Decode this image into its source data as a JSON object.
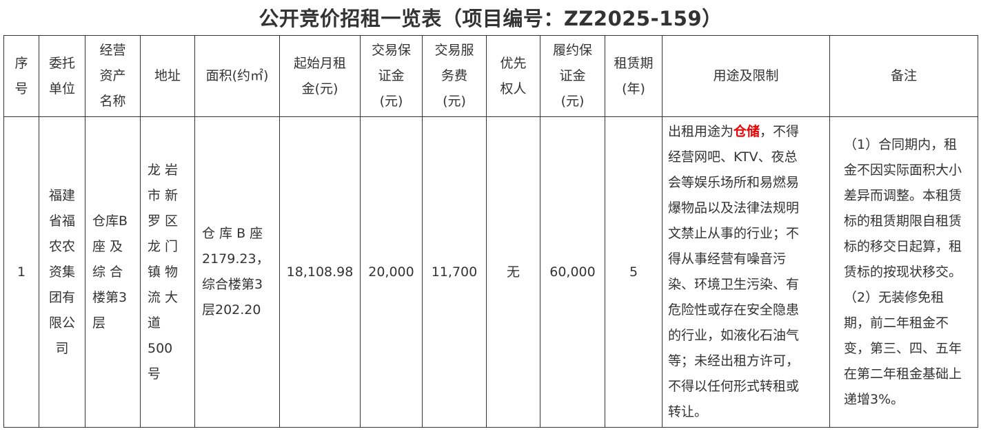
{
  "title": "公开竞价招租一览表（项目编号：ZZ2025-159）",
  "headers": [
    "序\n号",
    "委托\n单位",
    "经营\n资产\n名称",
    "地址",
    "面积(约㎡)",
    "起始月租\n金(元)",
    "交易保\n证金\n(元)",
    "交易服\n务费\n(元)",
    "优先\n权人",
    "履约保\n证金\n(元)",
    "租赁期\n(年)",
    "用途及限制",
    "备注"
  ],
  "row": {
    "index": "1",
    "entrusting_unit": "福建\n省福\n农农\n资集\n团有\n限公\n司",
    "asset_name": "仓库B\n座 及\n综 合\n楼第3\n层",
    "address": "龙 岩\n市 新\n罗 区\n龙 门\n镇 物\n流 大\n道\n500\n号",
    "area": "仓 库 B 座\n2179.23，\n综合楼第3\n层202.20",
    "starting_rent": "18,108.98",
    "deposit": "20,000",
    "service_fee": "11,700",
    "priority_holder": "无",
    "performance_bond": "60,000",
    "lease_term": "5",
    "usage_prefix": "出租用途为",
    "usage_highlight": "仓储",
    "usage_rest": "，不得\n经营网吧、KTV、夜总\n会等娱乐场所和易燃易\n爆物品以及法律法规明\n文禁止从事的行业；不\n得从事经营有噪音污\n染、环境卫生污染、有\n危险性或存在安全隐患\n的行业，如液化石油气\n等；未经出租方许可，\n不得以任何形式转租或\n转让。",
    "remarks": "（1）合同期内，租\n金不因实际面积大小\n差异而调整。本租赁\n标的租赁期限自租赁\n标的移交日起算，租\n赁标的按现状移交。\n（2）无装修免租\n期，前二年租金不\n变，第三、四、五年\n在第二年租金基础上\n递增3%。"
  },
  "colors": {
    "highlight": "#ee0000",
    "border": "#333333"
  }
}
